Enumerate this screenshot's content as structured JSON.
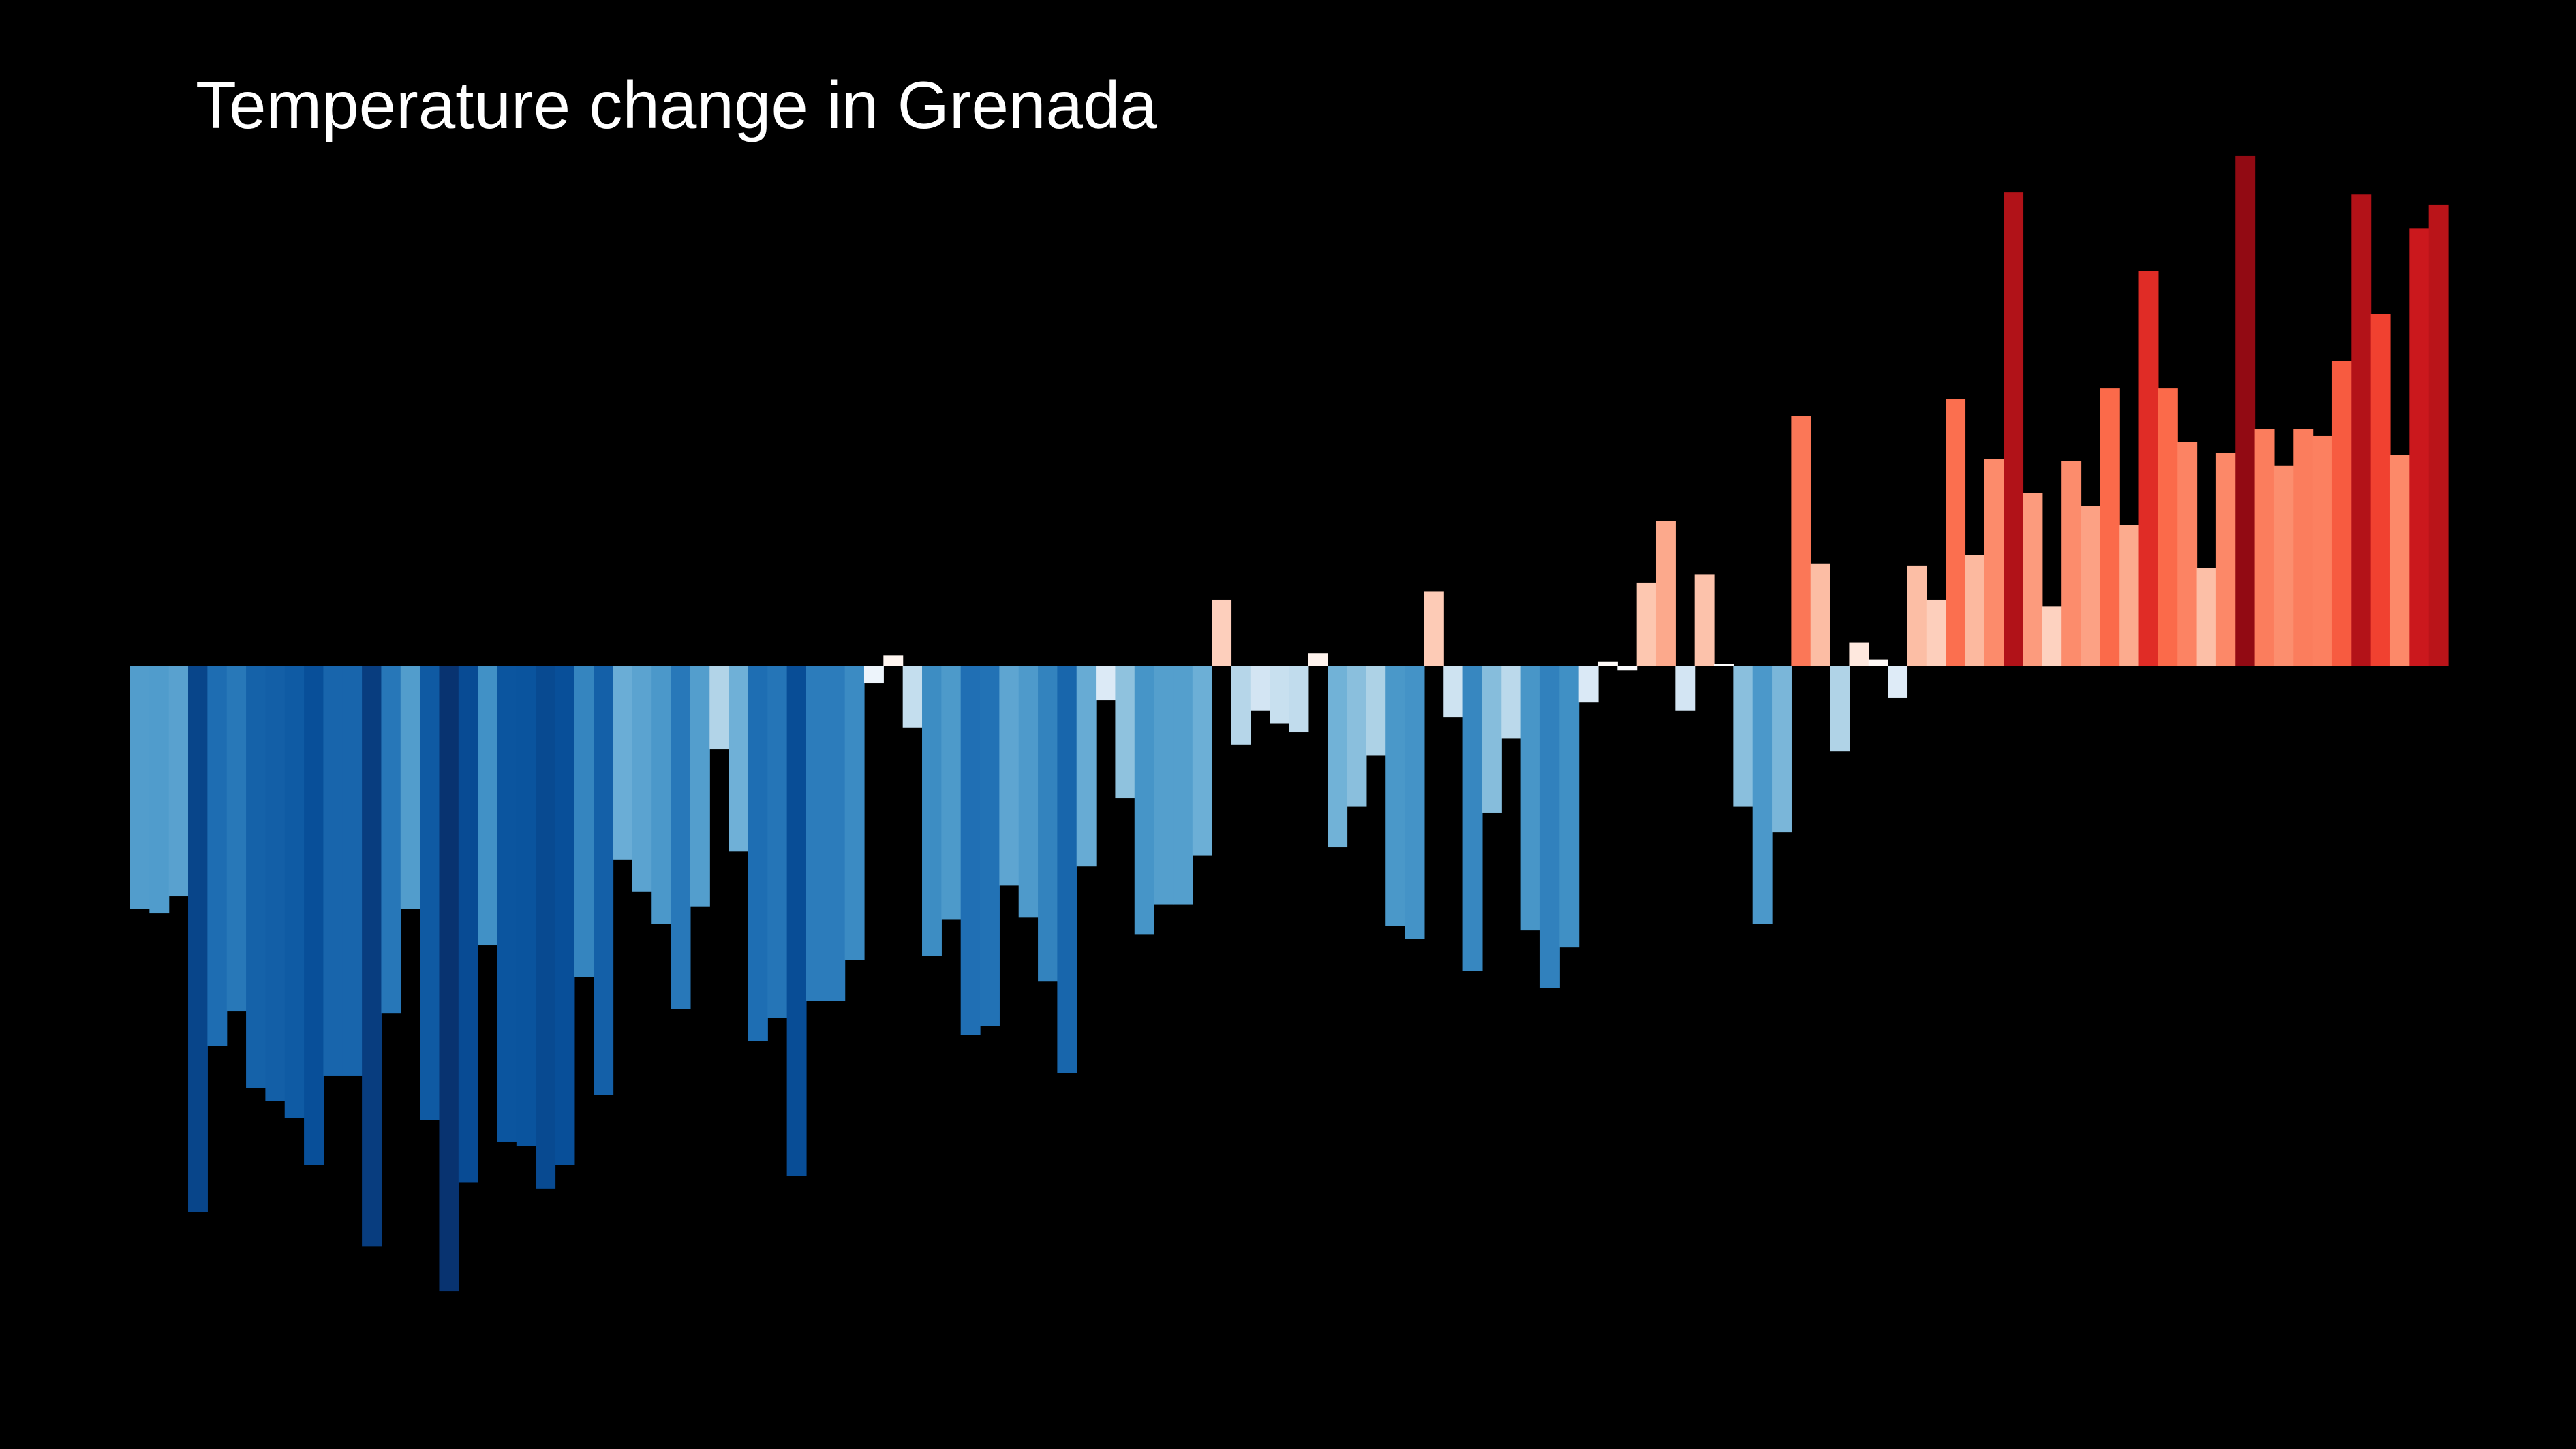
{
  "chart_data": {
    "type": "bar",
    "title": "Temperature change in Grenada",
    "xlabel": "",
    "ylabel": "",
    "grid": false,
    "legend": "none",
    "ylim": [
      -2.95,
      2.35
    ],
    "values": [
      -1.14,
      -1.16,
      -1.08,
      -2.56,
      -1.78,
      -1.62,
      -1.98,
      -2.04,
      -2.12,
      -2.34,
      -1.92,
      -1.92,
      -2.72,
      -1.63,
      -1.14,
      -2.13,
      -2.93,
      -2.42,
      -1.31,
      -2.23,
      -2.25,
      -2.45,
      -2.34,
      -1.46,
      -2.01,
      -0.91,
      -1.06,
      -1.21,
      -1.61,
      -1.13,
      -0.39,
      -0.87,
      -1.76,
      -1.65,
      -2.39,
      -1.57,
      -1.57,
      -1.38,
      -0.08,
      0.05,
      -0.29,
      -1.36,
      -1.19,
      -1.73,
      -1.69,
      -1.03,
      -1.18,
      -1.48,
      -1.91,
      -0.94,
      -0.16,
      -0.62,
      -1.26,
      -1.12,
      -1.12,
      -0.89,
      0.31,
      -0.37,
      -0.21,
      -0.27,
      -0.31,
      0.06,
      -0.85,
      -0.66,
      -0.42,
      -1.22,
      -1.28,
      0.35,
      -0.24,
      -1.43,
      -0.69,
      -0.34,
      -1.24,
      -1.51,
      -1.32,
      -0.17,
      0.02,
      -0.02,
      0.39,
      0.68,
      -0.21,
      0.43,
      0.0,
      -0.66,
      -1.21,
      -0.78,
      1.17,
      0.48,
      -0.4,
      0.11,
      0.03,
      -0.15,
      0.47,
      0.31,
      1.25,
      0.52,
      0.97,
      2.22,
      0.81,
      0.28,
      0.96,
      0.75,
      1.3,
      0.66,
      1.85,
      1.3,
      1.05,
      0.46,
      1.0,
      2.39,
      1.11,
      0.94,
      1.11,
      1.08,
      1.43,
      2.21,
      1.65,
      0.99,
      2.05,
      2.16
    ]
  }
}
